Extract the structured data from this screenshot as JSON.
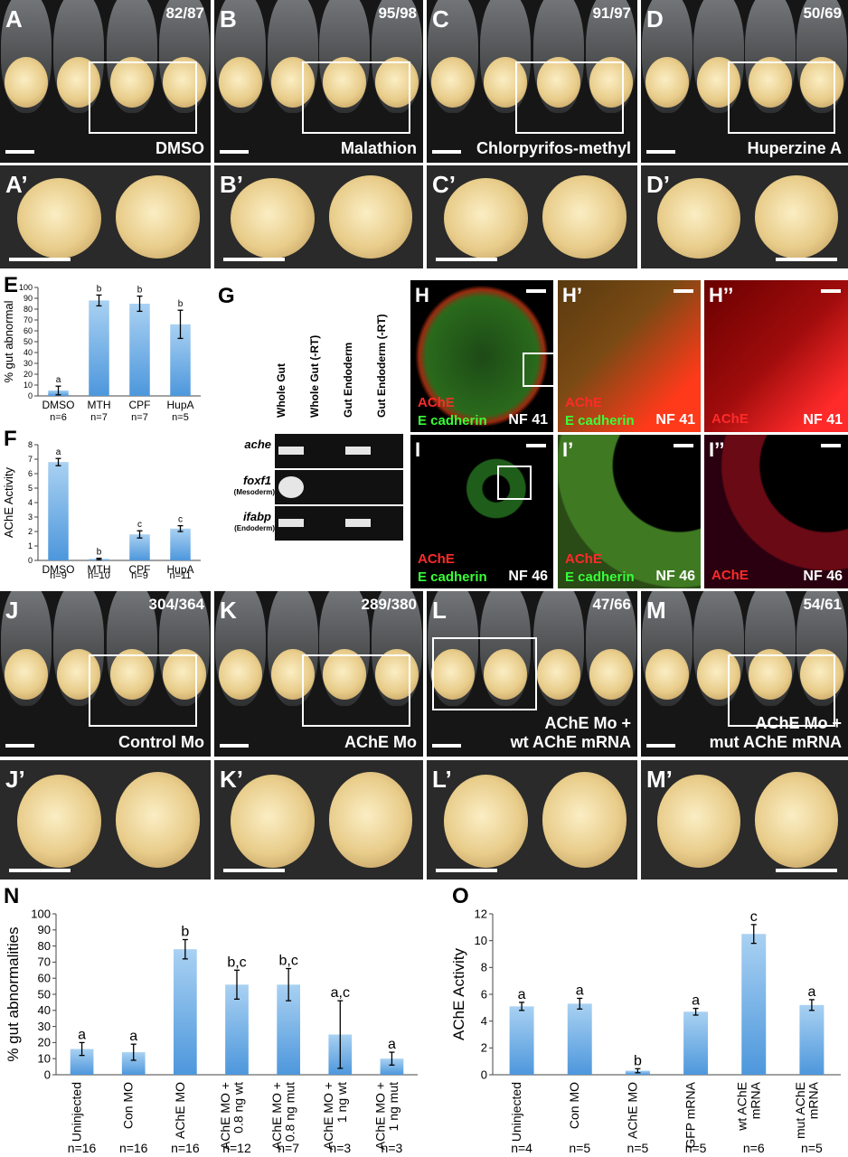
{
  "row1": [
    {
      "label": "A",
      "count": "82/87",
      "name": "DMSO"
    },
    {
      "label": "B",
      "count": "95/98",
      "name": "Malathion"
    },
    {
      "label": "C",
      "count": "91/97",
      "name": "Chlorpyrifos-methyl"
    },
    {
      "label": "D",
      "count": "50/69",
      "name": "Huperzine A"
    }
  ],
  "row1_zoom": [
    "A’",
    "B’",
    "C’",
    "D’"
  ],
  "panel_e": {
    "letter": "E",
    "chart_data": {
      "type": "bar",
      "ylabel": "% gut abnormal",
      "categories": [
        "DMSO",
        "MTH",
        "CPF",
        "HupA"
      ],
      "n_labels": [
        "n=6",
        "n=7",
        "n=7",
        "n=5"
      ],
      "values": [
        5,
        88,
        85,
        66
      ],
      "errors": [
        4,
        5,
        7,
        13
      ],
      "letters": [
        "a",
        "b",
        "b",
        "b"
      ],
      "ylim": [
        0,
        100
      ],
      "ticks": [
        0,
        10,
        20,
        30,
        40,
        50,
        60,
        70,
        80,
        90,
        100
      ]
    }
  },
  "panel_f": {
    "letter": "F",
    "chart_data": {
      "type": "bar",
      "ylabel": "AChE Activity",
      "categories": [
        "DMSO",
        "MTH",
        "CPF",
        "HupA"
      ],
      "n_labels": [
        "n=9",
        "n=10",
        "n=9",
        "n=11"
      ],
      "values": [
        6.8,
        0.1,
        1.8,
        2.2
      ],
      "errors": [
        0.25,
        0.05,
        0.25,
        0.2
      ],
      "letters": [
        "a",
        "b",
        "c",
        "c"
      ],
      "ylim": [
        0,
        8
      ],
      "ticks": [
        0,
        1,
        2,
        3,
        4,
        5,
        6,
        7,
        8
      ]
    }
  },
  "panel_g": {
    "letter": "G",
    "columns": [
      "Whole Gut",
      "Whole Gut (-RT)",
      "Gut Endoderm",
      "Gut Endoderm (-RT)"
    ],
    "rows": [
      {
        "gene": "ache",
        "sub": ""
      },
      {
        "gene": "foxf1",
        "sub": "(Mesoderm)"
      },
      {
        "gene": "ifabp",
        "sub": "(Endoderm)"
      }
    ]
  },
  "panels_hi": [
    {
      "letter": "H",
      "a": "AChE",
      "b": "E cadherin",
      "stage": "NF 41"
    },
    {
      "letter": "H’",
      "a": "AChE",
      "b": "E cadherin",
      "stage": "NF 41"
    },
    {
      "letter": "H’’",
      "a": "AChE",
      "b": "",
      "stage": "NF 41"
    },
    {
      "letter": "I",
      "a": "AChE",
      "b": "E cadherin",
      "stage": "NF 46"
    },
    {
      "letter": "I’",
      "a": "AChE",
      "b": "E cadherin",
      "stage": "NF 46"
    },
    {
      "letter": "I’’",
      "a": "AChE",
      "b": "",
      "stage": "NF 46"
    }
  ],
  "row3": [
    {
      "label": "J",
      "count": "304/364",
      "name": "Control Mo"
    },
    {
      "label": "K",
      "count": "289/380",
      "name": "AChE Mo"
    },
    {
      "label": "L",
      "count": "47/66",
      "name": "AChE Mo +\nwt AChE mRNA"
    },
    {
      "label": "M",
      "count": "54/61",
      "name": "AChE Mo +\nmut AChE mRNA"
    }
  ],
  "row3_zoom": [
    "J’",
    "K’",
    "L’",
    "M’"
  ],
  "panel_n": {
    "letter": "N",
    "chart_data": {
      "type": "bar",
      "ylabel": "% gut abnormalities",
      "categories": [
        "Uninjected",
        "Con MO",
        "AChE MO",
        "AChE MO +\n0.8 ng wt",
        "AChE MO +\n0.8 ng mut",
        "AChE MO +\n1 ng wt",
        "AChE MO +\n1 ng mut"
      ],
      "n_labels": [
        "n=16",
        "n=16",
        "n=16",
        "n=12",
        "n=7",
        "n=3",
        "n=3"
      ],
      "values": [
        16,
        14,
        78,
        56,
        56,
        25,
        10
      ],
      "errors": [
        4,
        5,
        6,
        9,
        10,
        21,
        4
      ],
      "letters": [
        "a",
        "a",
        "b",
        "b,c",
        "b,c",
        "a,c",
        "a"
      ],
      "ylim": [
        0,
        100
      ],
      "ticks": [
        0,
        10,
        20,
        30,
        40,
        50,
        60,
        70,
        80,
        90,
        100
      ]
    }
  },
  "panel_o": {
    "letter": "O",
    "chart_data": {
      "type": "bar",
      "ylabel": "AChE Activity",
      "categories": [
        "Uninjected",
        "Con MO",
        "AChE MO",
        "GFP mRNA",
        "wt AChE\nmRNA",
        "mut AChE\nmRNA"
      ],
      "n_labels": [
        "n=4",
        "n=5",
        "n=5",
        "n=5",
        "n=6",
        "n=5"
      ],
      "values": [
        5.1,
        5.3,
        0.3,
        4.7,
        10.5,
        5.2
      ],
      "errors": [
        0.3,
        0.4,
        0.15,
        0.25,
        0.7,
        0.4
      ],
      "letters": [
        "a",
        "a",
        "b",
        "a",
        "c",
        "a"
      ],
      "ylim": [
        0,
        12
      ],
      "ticks": [
        0,
        2,
        4,
        6,
        8,
        10,
        12
      ]
    }
  },
  "colors": {
    "bar_top": "#a9d1f2",
    "bar_bottom": "#4d97dc",
    "ache_red": "#ff2a2a",
    "ecad_green": "#38ff38"
  }
}
